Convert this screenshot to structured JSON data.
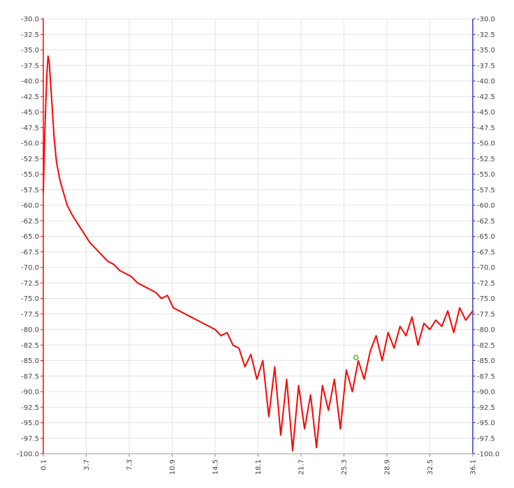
{
  "chart_data": {
    "type": "line",
    "title": "",
    "xlabel": "",
    "ylabel": "",
    "xlim": [
      0.1,
      36.1
    ],
    "ylim": [
      -100.0,
      -30.0
    ],
    "x_ticks": [
      "0.1",
      "3.7",
      "7.3",
      "10.9",
      "14.5",
      "18.1",
      "21.7",
      "25.3",
      "28.9",
      "32.5",
      "36.1"
    ],
    "y_ticks_left": [
      "-30.0",
      "-32.5",
      "-35.0",
      "-37.5",
      "-40.0",
      "-42.5",
      "-45.0",
      "-47.5",
      "-50.0",
      "-52.5",
      "-55.0",
      "-57.5",
      "-60.0",
      "-62.5",
      "-65.0",
      "-67.5",
      "-70.0",
      "-72.5",
      "-75.0",
      "-77.5",
      "-80.0",
      "-82.5",
      "-85.0",
      "-87.5",
      "-90.0",
      "-92.5",
      "-95.0",
      "-97.5",
      "-100.0"
    ],
    "y_ticks_right": [
      "-30.0",
      "-32.5",
      "-35.0",
      "-37.5",
      "-40.0",
      "-42.5",
      "-45.0",
      "-47.5",
      "-50.0",
      "-52.5",
      "-55.0",
      "-57.5",
      "-60.0",
      "-62.5",
      "-65.0",
      "-67.5",
      "-70.0",
      "-72.5",
      "-75.0",
      "-77.5",
      "-80.0",
      "-82.5",
      "-85.0",
      "-87.5",
      "-90.0",
      "-92.5",
      "-95.0",
      "-97.5",
      "-100.0"
    ],
    "grid": true,
    "series": [
      {
        "color": "#ff0000",
        "x": [
          0.1,
          0.2,
          0.3,
          0.4,
          0.5,
          0.6,
          0.8,
          1.0,
          1.2,
          1.5,
          1.8,
          2.1,
          2.5,
          3.0,
          3.5,
          4.0,
          4.5,
          5.0,
          5.5,
          6.0,
          6.5,
          7.0,
          7.5,
          8.0,
          8.5,
          9.0,
          9.5,
          10.0,
          10.5,
          11.0,
          11.5,
          12.0,
          12.5,
          13.0,
          13.5,
          14.0,
          14.5,
          15.0,
          15.5,
          16.0,
          16.5,
          17.0,
          17.5,
          18.0,
          18.5,
          19.0,
          19.5,
          20.0,
          20.5,
          21.0,
          21.5,
          22.0,
          22.5,
          23.0,
          23.5,
          24.0,
          24.5,
          25.0,
          25.5,
          26.0,
          26.5,
          27.0,
          27.5,
          28.0,
          28.5,
          29.0,
          29.5,
          30.0,
          30.5,
          31.0,
          31.5,
          32.0,
          32.5,
          33.0,
          33.5,
          34.0,
          34.5,
          35.0,
          35.5,
          36.1
        ],
        "y": [
          -58.0,
          -50.0,
          -44.0,
          -39.0,
          -36.0,
          -37.0,
          -43.0,
          -49.0,
          -53.0,
          -56.0,
          -58.0,
          -60.0,
          -61.5,
          -63.0,
          -64.5,
          -66.0,
          -67.0,
          -68.0,
          -69.0,
          -69.5,
          -70.5,
          -71.0,
          -71.5,
          -72.5,
          -73.0,
          -73.5,
          -74.0,
          -75.0,
          -74.5,
          -76.5,
          -77.0,
          -77.5,
          -78.0,
          -78.5,
          -79.0,
          -79.5,
          -80.0,
          -81.0,
          -80.5,
          -82.5,
          -83.0,
          -86.0,
          -84.0,
          -88.0,
          -85.0,
          -94.0,
          -86.0,
          -97.0,
          -88.0,
          -99.5,
          -89.0,
          -96.0,
          -90.5,
          -99.0,
          -89.0,
          -93.0,
          -88.0,
          -96.0,
          -86.5,
          -90.0,
          -85.0,
          -88.0,
          -83.5,
          -81.0,
          -85.0,
          -80.5,
          -83.0,
          -79.5,
          -81.0,
          -78.0,
          -82.5,
          -79.0,
          -80.0,
          -78.5,
          -79.5,
          -77.0,
          -80.5,
          -76.5,
          -78.5,
          -77.0
        ]
      }
    ],
    "highlight_point": {
      "x": 26.3,
      "y": -84.5,
      "color": "#55bb22"
    },
    "left_axis_color": "#ff0000",
    "right_axis_color": "#3333cc"
  }
}
